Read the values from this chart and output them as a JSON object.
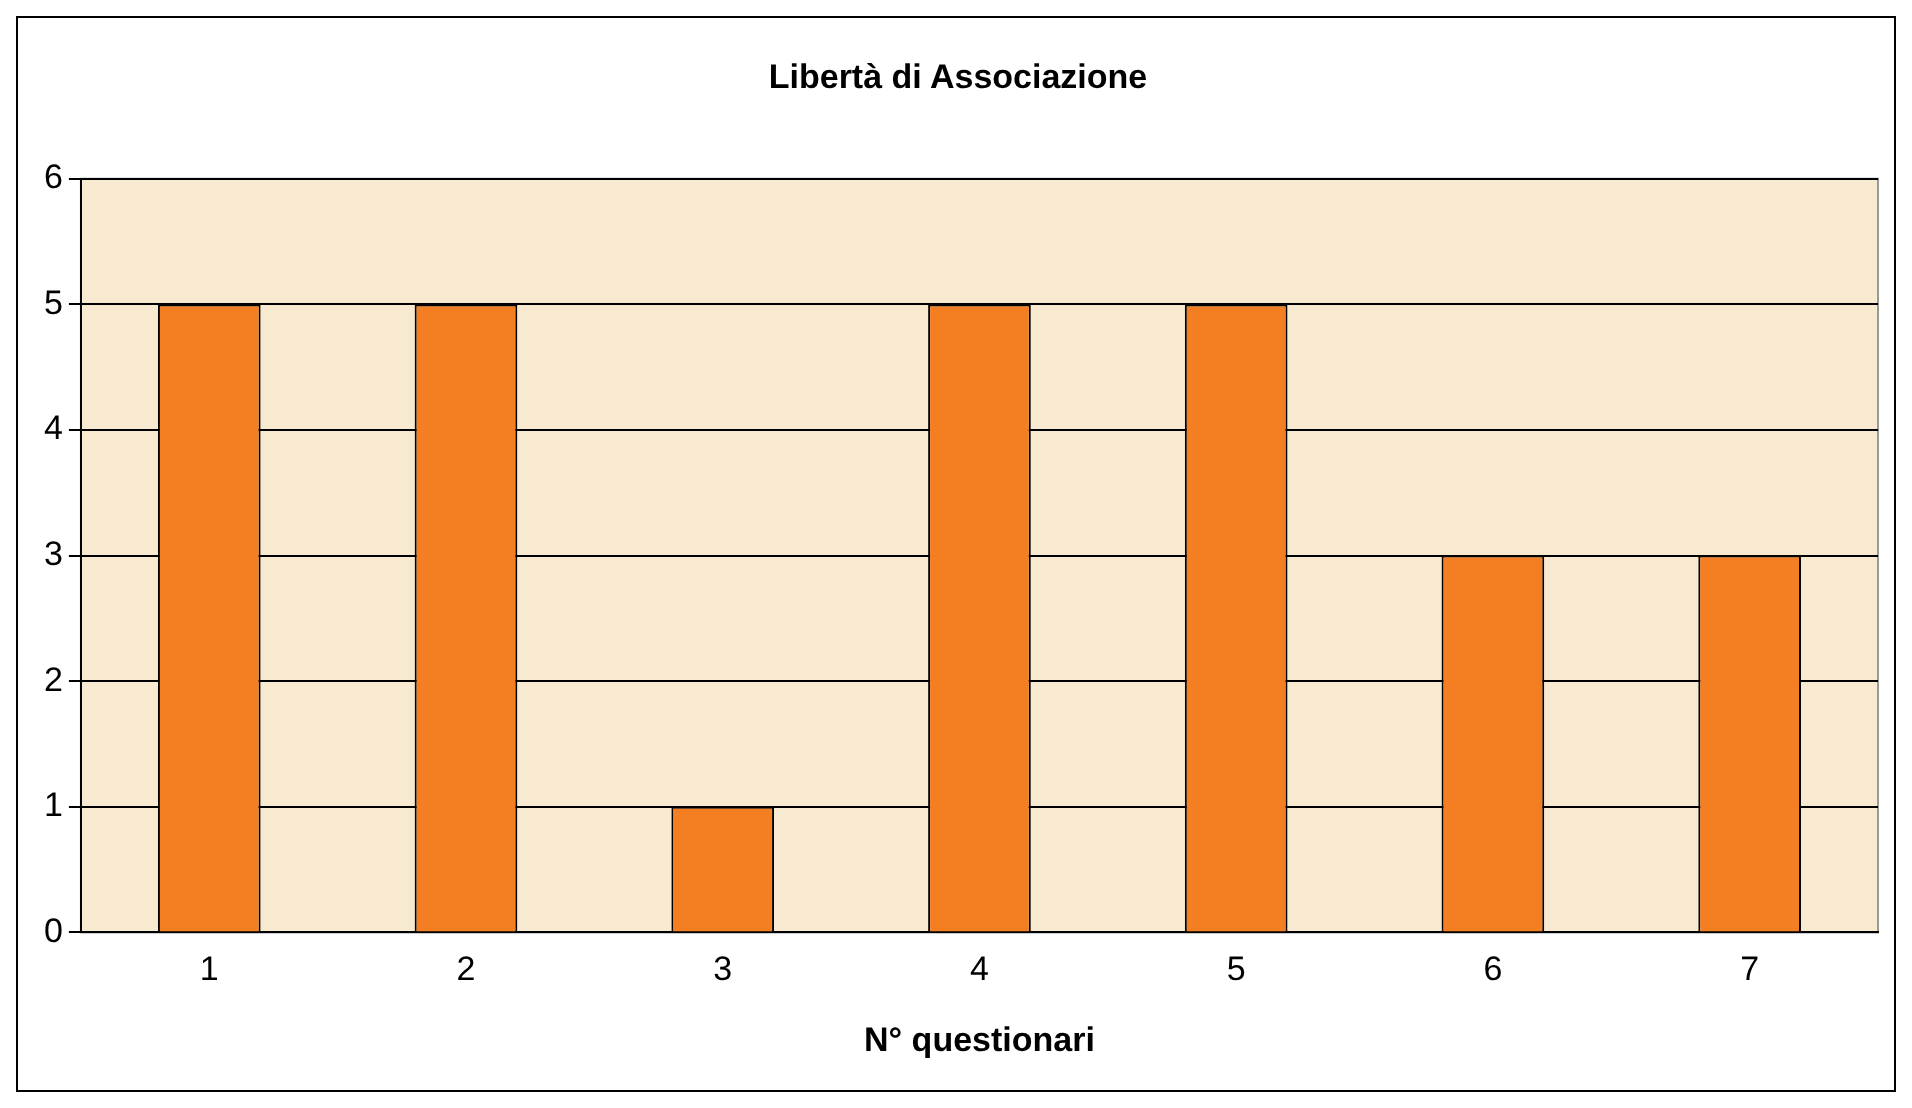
{
  "chart_data": {
    "type": "bar",
    "title": "Libertà di Associazione",
    "xlabel": "N° questionari",
    "categories": [
      "1",
      "2",
      "3",
      "4",
      "5",
      "6",
      "7"
    ],
    "values": [
      5,
      5,
      1,
      5,
      5,
      3,
      3
    ],
    "color": "#f37f22",
    "ylim": [
      0,
      6
    ],
    "yticks": [
      0,
      1,
      2,
      3,
      4,
      5,
      6
    ],
    "grid": "y"
  }
}
